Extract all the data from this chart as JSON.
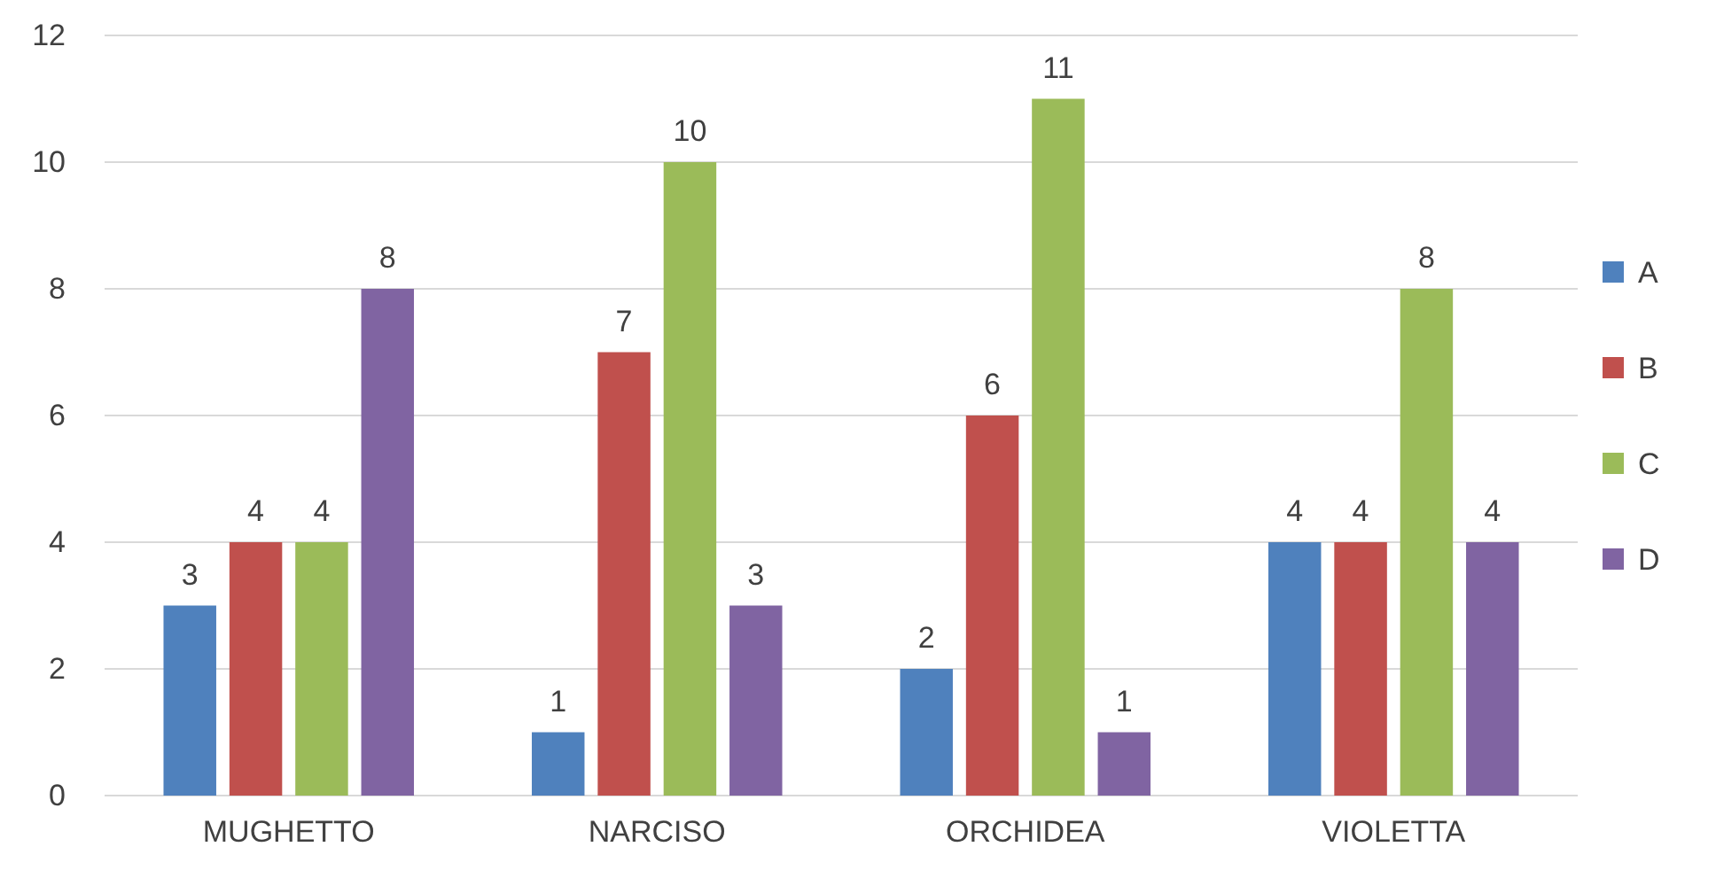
{
  "chart_data": {
    "type": "bar",
    "categories": [
      "MUGHETTO",
      "NARCISO",
      "ORCHIDEA",
      "VIOLETTA"
    ],
    "series": [
      {
        "name": "A",
        "color": "#4f81bd",
        "values": [
          3,
          1,
          2,
          4
        ]
      },
      {
        "name": "B",
        "color": "#c0504d",
        "values": [
          4,
          7,
          6,
          4
        ]
      },
      {
        "name": "C",
        "color": "#9bbb59",
        "values": [
          4,
          10,
          11,
          8
        ]
      },
      {
        "name": "D",
        "color": "#8064a2",
        "values": [
          8,
          3,
          1,
          4
        ]
      }
    ],
    "ylim": [
      0,
      12
    ],
    "yticks": [
      0,
      2,
      4,
      6,
      8,
      10,
      12
    ],
    "grid": "y",
    "legend": "right",
    "data_labels": true
  }
}
